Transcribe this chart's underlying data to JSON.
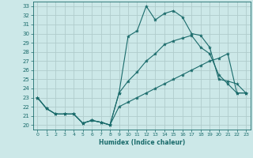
{
  "xlabel": "Humidex (Indice chaleur)",
  "bg_color": "#cce8e8",
  "grid_color": "#b8d8d8",
  "line_color": "#1a6b6b",
  "xlim": [
    -0.5,
    23.5
  ],
  "ylim": [
    19.5,
    33.5
  ],
  "xticks": [
    0,
    1,
    2,
    3,
    4,
    5,
    6,
    7,
    8,
    9,
    10,
    11,
    12,
    13,
    14,
    15,
    16,
    17,
    18,
    19,
    20,
    21,
    22,
    23
  ],
  "yticks": [
    20,
    21,
    22,
    23,
    24,
    25,
    26,
    27,
    28,
    29,
    30,
    31,
    32,
    33
  ],
  "line1_x": [
    0,
    1,
    2,
    3,
    4,
    5,
    6,
    7,
    8,
    9,
    10,
    11,
    12,
    13,
    14,
    15,
    16,
    17,
    18,
    19,
    20,
    21,
    22,
    23
  ],
  "line1_y": [
    23.0,
    21.8,
    21.2,
    21.2,
    21.2,
    20.2,
    20.5,
    20.3,
    20.0,
    23.5,
    29.7,
    30.3,
    33.0,
    31.5,
    32.2,
    32.5,
    31.8,
    30.0,
    29.8,
    28.5,
    25.0,
    24.8,
    24.5,
    23.5
  ],
  "line2_x": [
    0,
    1,
    2,
    3,
    4,
    5,
    6,
    7,
    8,
    9,
    10,
    11,
    12,
    13,
    14,
    15,
    16,
    17,
    18,
    19,
    20,
    21,
    22,
    23
  ],
  "line2_y": [
    23.0,
    21.8,
    21.2,
    21.2,
    21.2,
    20.2,
    20.5,
    20.3,
    20.0,
    23.5,
    24.8,
    25.8,
    27.0,
    27.8,
    28.8,
    29.2,
    29.5,
    29.8,
    28.5,
    27.8,
    25.5,
    24.5,
    23.5,
    23.5
  ],
  "line3_x": [
    0,
    1,
    2,
    3,
    4,
    5,
    6,
    7,
    8,
    9,
    10,
    11,
    12,
    13,
    14,
    15,
    16,
    17,
    18,
    19,
    20,
    21,
    22,
    23
  ],
  "line3_y": [
    23.0,
    21.8,
    21.2,
    21.2,
    21.2,
    20.2,
    20.5,
    20.3,
    20.0,
    22.0,
    22.5,
    23.0,
    23.5,
    24.0,
    24.5,
    25.0,
    25.5,
    26.0,
    26.5,
    27.0,
    27.3,
    27.8,
    23.5,
    23.5
  ]
}
